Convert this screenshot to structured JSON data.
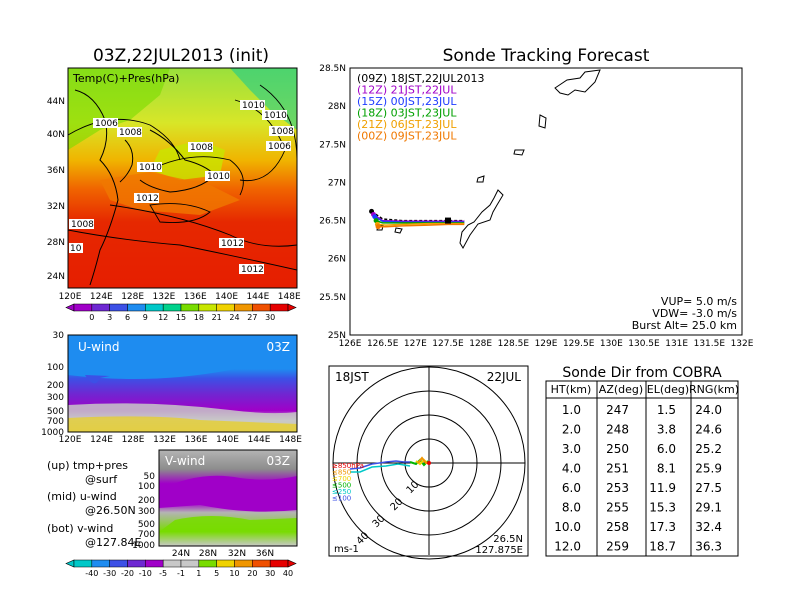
{
  "left_map": {
    "title": "03Z,22JUL2013 (init)",
    "legend_label": "Temp(C)+Pres(hPa)",
    "lat_ticks": [
      "44N",
      "40N",
      "36N",
      "32N",
      "28N",
      "24N"
    ],
    "lon_ticks": [
      "120E",
      "124E",
      "128E",
      "132E",
      "136E",
      "140E",
      "144E",
      "148E"
    ],
    "isobar_labels": [
      "1006",
      "1008",
      "1010",
      "1010",
      "1008",
      "1006",
      "1010",
      "1010",
      "1012",
      "1008",
      "1012",
      "10",
      "1012",
      "1008"
    ],
    "colorbar_ticks": [
      "0",
      "3",
      "6",
      "9",
      "12",
      "15",
      "18",
      "21",
      "24",
      "27",
      "30"
    ],
    "colorbar_colors": [
      "#a000c8",
      "#6e28d2",
      "#3c50e6",
      "#1e8cf0",
      "#00c8c8",
      "#00d28c",
      "#78dc00",
      "#c8e600",
      "#f0d200",
      "#f09600",
      "#f05000",
      "#e60000"
    ]
  },
  "u_wind": {
    "label": "U-wind",
    "time": "03Z",
    "y_ticks": [
      "30",
      "100",
      "200",
      "300",
      "500",
      "700",
      "1000"
    ],
    "x_ticks": [
      "120E",
      "124E",
      "128E",
      "132E",
      "136E",
      "140E",
      "144E",
      "148E"
    ]
  },
  "v_wind": {
    "label": "V-wind",
    "time": "03Z",
    "y_ticks": [
      "50",
      "100",
      "200",
      "300",
      "500",
      "700",
      "1000"
    ],
    "x_ticks": [
      "24N",
      "28N",
      "32N",
      "36N"
    ],
    "colorbar_ticks": [
      "-40",
      "-30",
      "-20",
      "-10",
      "-5",
      "-1",
      "1",
      "5",
      "10",
      "20",
      "30",
      "40"
    ],
    "colorbar_colors": [
      "#00c8c8",
      "#1e8cf0",
      "#3c50e6",
      "#6e28d2",
      "#a000c8",
      "#c8c8c8",
      "#c8c8c8",
      "#78dc00",
      "#f0d200",
      "#f09600",
      "#f05000",
      "#e60000"
    ]
  },
  "notes": [
    {
      "line1": "(up) tmp+pres",
      "line2": "@surf"
    },
    {
      "line1": "(mid) u-wind",
      "line2": "@26.50N"
    },
    {
      "line1": "(bot) v-wind",
      "line2": "@127.84E"
    }
  ],
  "tracking": {
    "title": "Sonde Tracking Forecast",
    "lat_ticks": [
      "28.5N",
      "28N",
      "27.5N",
      "27N",
      "26.5N",
      "26N",
      "25.5N",
      "25N"
    ],
    "lon_ticks": [
      "126E",
      "126.5E",
      "127E",
      "127.5E",
      "128E",
      "128.5E",
      "129E",
      "129.5E",
      "130E",
      "130.5E",
      "131E",
      "131.5E",
      "132E"
    ],
    "legend": [
      {
        "text": "(09Z)  18JST,22JUL2013",
        "color": "#000000"
      },
      {
        "text": "(12Z)  21JST,22JUL",
        "color": "#a000c8"
      },
      {
        "text": "(15Z)  00JST,23JUL",
        "color": "#1e3cff"
      },
      {
        "text": "(18Z)  03JST,23JUL",
        "color": "#00a000"
      },
      {
        "text": "(21Z)  06JST,23JUL",
        "color": "#f0a000"
      },
      {
        "text": "(00Z)  09JST,23JUL",
        "color": "#f07800"
      }
    ],
    "params": [
      "VUP= 5.0 m/s",
      "VDW= -3.0 m/s",
      "Burst Alt= 25.0 km"
    ]
  },
  "polar": {
    "time_label": "18JST",
    "date_label": "22JUL",
    "ring_labels": [
      "10",
      "20",
      "30",
      "40"
    ],
    "level_legend": [
      {
        "text": "≥850hPa",
        "color": "#e60000"
      },
      {
        "text": "≤850",
        "color": "#f09600"
      },
      {
        "text": "≤700",
        "color": "#f0d200"
      },
      {
        "text": "≤500",
        "color": "#00b400"
      },
      {
        "text": "≤250",
        "color": "#00c8c8"
      },
      {
        "text": "≤100",
        "color": "#3c50e6"
      }
    ],
    "unit": "ms-1",
    "lat_label": "26.5N",
    "lon_label": "127.875E"
  },
  "sonde_dir": {
    "title": "Sonde Dir from COBRA",
    "headers": [
      "HT(km)",
      "AZ(deg)",
      "EL(deg)",
      "RNG(km)"
    ],
    "rows": [
      [
        "1.0",
        "247",
        "1.5",
        "24.0"
      ],
      [
        "2.0",
        "248",
        "3.8",
        "24.6"
      ],
      [
        "3.0",
        "250",
        "6.0",
        "25.2"
      ],
      [
        "4.0",
        "251",
        "8.1",
        "25.9"
      ],
      [
        "6.0",
        "253",
        "11.9",
        "27.5"
      ],
      [
        "8.0",
        "255",
        "15.3",
        "29.1"
      ],
      [
        "10.0",
        "258",
        "17.3",
        "32.4"
      ],
      [
        "12.0",
        "259",
        "18.7",
        "36.3"
      ]
    ]
  },
  "chart_data": [
    {
      "type": "line",
      "title": "Sonde Tracking Forecast",
      "xlabel": "",
      "ylabel": "",
      "xlim": [
        126,
        132
      ],
      "ylim": [
        25,
        28.5
      ],
      "series": [
        {
          "name": "(09Z)  18JST,22JUL2013",
          "x": [
            126.33,
            126.5,
            126.8,
            127.2,
            127.5,
            127.75
          ],
          "y": [
            26.62,
            26.52,
            26.5,
            26.5,
            26.5,
            26.5
          ]
        },
        {
          "name": "(12Z)  21JST,22JUL",
          "x": [
            126.36,
            126.5,
            126.8,
            127.2,
            127.5,
            127.75
          ],
          "y": [
            26.58,
            26.5,
            26.49,
            26.49,
            26.49,
            26.49
          ]
        },
        {
          "name": "(15Z)  00JST,23JUL",
          "x": [
            126.38,
            126.5,
            126.8,
            127.2,
            127.5,
            127.75
          ],
          "y": [
            26.55,
            26.49,
            26.48,
            26.48,
            26.48,
            26.48
          ]
        },
        {
          "name": "(18Z)  03JST,23JUL",
          "x": [
            126.4,
            126.5,
            126.8,
            127.2,
            127.5,
            127.75
          ],
          "y": [
            26.5,
            26.47,
            26.47,
            26.47,
            26.47,
            26.47
          ]
        },
        {
          "name": "(21Z)  06JST,23JUL",
          "x": [
            126.42,
            126.55,
            126.8,
            127.2,
            127.5,
            127.75
          ],
          "y": [
            26.45,
            26.44,
            26.45,
            26.46,
            26.46,
            26.46
          ]
        },
        {
          "name": "(00Z)  09JST,23JUL",
          "x": [
            126.43,
            126.55,
            126.8,
            127.2,
            127.5,
            127.75
          ],
          "y": [
            26.42,
            26.42,
            26.43,
            26.44,
            26.45,
            26.45
          ]
        }
      ]
    },
    {
      "type": "table",
      "title": "Sonde Dir from COBRA",
      "columns": [
        "HT(km)",
        "AZ(deg)",
        "EL(deg)",
        "RNG(km)"
      ],
      "rows": [
        [
          1.0,
          247,
          1.5,
          24.0
        ],
        [
          2.0,
          248,
          3.8,
          24.6
        ],
        [
          3.0,
          250,
          6.0,
          25.2
        ],
        [
          4.0,
          251,
          8.1,
          25.9
        ],
        [
          6.0,
          253,
          11.9,
          27.5
        ],
        [
          8.0,
          255,
          15.3,
          29.1
        ],
        [
          10.0,
          258,
          17.3,
          32.4
        ],
        [
          12.0,
          259,
          18.7,
          36.3
        ]
      ]
    }
  ]
}
